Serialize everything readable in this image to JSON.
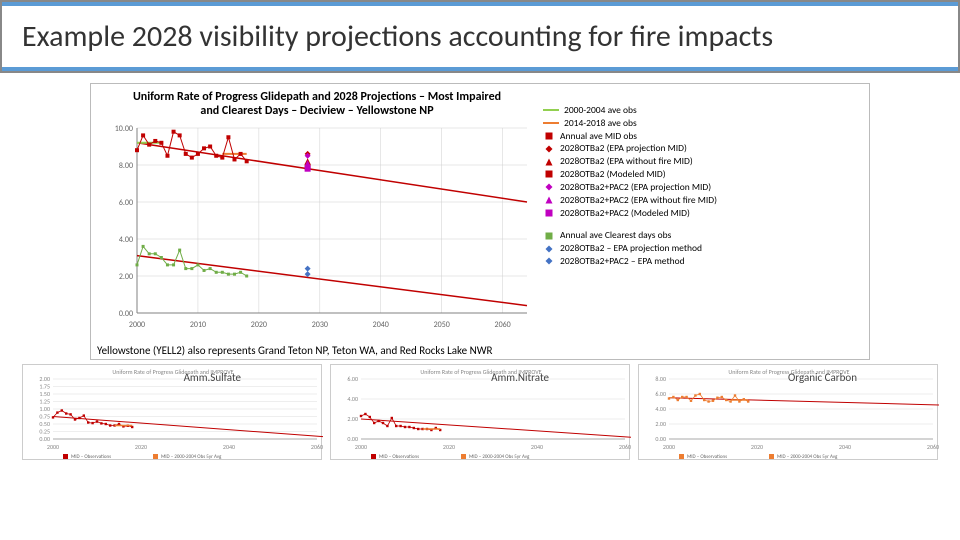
{
  "page_title": "Example 2028 visibility projections accounting for fire impacts",
  "main_chart": {
    "title": "Uniform Rate of Progress Glidepath and 2028 Projections – Most Impaired and Clearest Days – Deciview – Yellowstone NP",
    "x": {
      "min": 2000,
      "max": 2064,
      "tick_step": 10,
      "label": ""
    },
    "y": {
      "min": 0.0,
      "max": 10.0,
      "tick_step": 2.0,
      "label": ""
    },
    "background_color": "#ffffff",
    "grid_color": "#cfcfcf",
    "axis_line_color": "#808080",
    "series": {
      "glide_line_upper": {
        "color": "#c00000",
        "width": 1.5,
        "points": [
          [
            2000,
            9.2
          ],
          [
            2064,
            6.0
          ]
        ]
      },
      "glide_line_lower": {
        "color": "#c00000",
        "width": 1.5,
        "points": [
          [
            2000,
            3.1
          ],
          [
            2064,
            0.4
          ]
        ]
      },
      "ave0004": {
        "color": "#92d050",
        "width": 2,
        "points": [
          [
            2000,
            9.2
          ],
          [
            2004,
            9.2
          ]
        ]
      },
      "ave1418": {
        "color": "#ed7d31",
        "width": 2,
        "points": [
          [
            2014,
            8.6
          ],
          [
            2018,
            8.6
          ]
        ]
      },
      "mid_obs": {
        "color": "#c00000",
        "marker": "square",
        "size": 4,
        "points": [
          [
            2000,
            8.8
          ],
          [
            2001,
            9.6
          ],
          [
            2002,
            9.1
          ],
          [
            2003,
            9.3
          ],
          [
            2004,
            9.2
          ],
          [
            2005,
            8.5
          ],
          [
            2006,
            9.8
          ],
          [
            2007,
            9.6
          ],
          [
            2008,
            8.6
          ],
          [
            2009,
            8.4
          ],
          [
            2010,
            8.6
          ],
          [
            2011,
            8.9
          ],
          [
            2012,
            9.0
          ],
          [
            2013,
            8.5
          ],
          [
            2014,
            8.4
          ],
          [
            2015,
            9.5
          ],
          [
            2016,
            8.3
          ],
          [
            2017,
            8.6
          ],
          [
            2018,
            8.2
          ]
        ]
      },
      "clear_obs": {
        "color": "#70ad47",
        "marker": "square",
        "size": 3,
        "points": [
          [
            2000,
            2.6
          ],
          [
            2001,
            3.6
          ],
          [
            2002,
            3.2
          ],
          [
            2003,
            3.2
          ],
          [
            2004,
            3.0
          ],
          [
            2005,
            2.6
          ],
          [
            2006,
            2.6
          ],
          [
            2007,
            3.4
          ],
          [
            2008,
            2.4
          ],
          [
            2009,
            2.4
          ],
          [
            2010,
            2.6
          ],
          [
            2011,
            2.3
          ],
          [
            2012,
            2.4
          ],
          [
            2013,
            2.2
          ],
          [
            2014,
            2.2
          ],
          [
            2015,
            2.1
          ],
          [
            2016,
            2.1
          ],
          [
            2017,
            2.2
          ],
          [
            2018,
            2.0
          ]
        ]
      },
      "proj_points_mid": [
        {
          "x": 2028,
          "y": 8.6,
          "color": "#c00000",
          "shape": "diamond"
        },
        {
          "x": 2028,
          "y": 8.2,
          "color": "#c00000",
          "shape": "triangle"
        },
        {
          "x": 2028,
          "y": 7.9,
          "color": "#c00000",
          "shape": "square"
        },
        {
          "x": 2028,
          "y": 8.5,
          "color": "#c000c0",
          "shape": "diamond"
        },
        {
          "x": 2028,
          "y": 8.1,
          "color": "#c000c0",
          "shape": "triangle"
        },
        {
          "x": 2028,
          "y": 7.8,
          "color": "#c000c0",
          "shape": "square"
        }
      ],
      "proj_points_clear": [
        {
          "x": 2028,
          "y": 2.4,
          "color": "#4472c4",
          "shape": "diamond"
        },
        {
          "x": 2028,
          "y": 2.1,
          "color": "#4472c4",
          "shape": "diamond"
        }
      ]
    }
  },
  "legend": {
    "items": [
      {
        "type": "line",
        "color": "#92d050",
        "label": "2000-2004 ave obs"
      },
      {
        "type": "line",
        "color": "#ed7d31",
        "label": "2014-2018 ave obs"
      },
      {
        "type": "marker",
        "shape": "square",
        "color": "#c00000",
        "label": "Annual ave MID obs"
      },
      {
        "type": "marker",
        "shape": "diamond",
        "color": "#c00000",
        "label": "2028OTBa2 (EPA projection MID)"
      },
      {
        "type": "marker",
        "shape": "triangle",
        "color": "#c00000",
        "label": "2028OTBa2 (EPA without fire MID)"
      },
      {
        "type": "marker",
        "shape": "square",
        "color": "#c00000",
        "label": "2028OTBa2 (Modeled MID)"
      },
      {
        "type": "marker",
        "shape": "diamond",
        "color": "#c000c0",
        "label": "2028OTBa2+PAC2 (EPA projection MID)"
      },
      {
        "type": "marker",
        "shape": "triangle",
        "color": "#c000c0",
        "label": "2028OTBa2+PAC2 (EPA without fire MID)"
      },
      {
        "type": "marker",
        "shape": "square",
        "color": "#c000c0",
        "label": "2028OTBa2+PAC2 (Modeled MID)"
      }
    ],
    "items2": [
      {
        "type": "marker",
        "shape": "square",
        "color": "#70ad47",
        "label": "Annual ave Clearest days obs"
      },
      {
        "type": "marker",
        "shape": "diamond",
        "color": "#4472c4",
        "label": "2028OTBa2 – EPA projection method"
      },
      {
        "type": "marker",
        "shape": "diamond",
        "color": "#4472c4",
        "label": "2028OTBa2+PAC2 – EPA method"
      }
    ]
  },
  "footnote": "Yellowstone (YELL2) also represents Grand Teton NP, Teton WA, and Red Rocks Lake NWR",
  "subcharts": [
    {
      "label": "Amm.Sulfate",
      "title": "Uniform Rate of Progress Glidepath and IMPROVE",
      "y": {
        "min": 0.0,
        "max": 2.0,
        "step": 0.25
      },
      "x": {
        "min": 2000,
        "max": 2060,
        "step": 20
      },
      "glide": {
        "color": "#c00000",
        "points": [
          [
            2000,
            0.75
          ],
          [
            2064,
            0.05
          ]
        ]
      },
      "obs": {
        "color": "#c00000",
        "marker_color": "#c00000",
        "points": [
          [
            2000,
            0.72
          ],
          [
            2001,
            0.88
          ],
          [
            2002,
            0.95
          ],
          [
            2003,
            0.85
          ],
          [
            2004,
            0.82
          ],
          [
            2005,
            0.65
          ],
          [
            2006,
            0.7
          ],
          [
            2007,
            0.78
          ],
          [
            2008,
            0.55
          ],
          [
            2009,
            0.53
          ],
          [
            2010,
            0.58
          ],
          [
            2011,
            0.52
          ],
          [
            2012,
            0.5
          ],
          [
            2013,
            0.45
          ],
          [
            2014,
            0.45
          ],
          [
            2015,
            0.5
          ],
          [
            2016,
            0.42
          ],
          [
            2017,
            0.44
          ],
          [
            2018,
            0.4
          ]
        ]
      },
      "ave": {
        "color": "#ed7d31",
        "points": [
          [
            2014,
            0.45
          ],
          [
            2018,
            0.45
          ]
        ]
      }
    },
    {
      "label": "Amm.Nitrate",
      "title": "Uniform Rate of Progress Glidepath and IMPROVE",
      "y": {
        "min": 0.0,
        "max": 6.0,
        "step": 2.0
      },
      "x": {
        "min": 2000,
        "max": 2060,
        "step": 20
      },
      "glide": {
        "color": "#c00000",
        "points": [
          [
            2000,
            2.0
          ],
          [
            2064,
            0.1
          ]
        ]
      },
      "obs": {
        "color": "#c00000",
        "points": [
          [
            2000,
            2.3
          ],
          [
            2001,
            2.5
          ],
          [
            2002,
            2.2
          ],
          [
            2003,
            1.6
          ],
          [
            2004,
            1.8
          ],
          [
            2005,
            1.6
          ],
          [
            2006,
            1.3
          ],
          [
            2007,
            2.1
          ],
          [
            2008,
            1.3
          ],
          [
            2009,
            1.3
          ],
          [
            2010,
            1.2
          ],
          [
            2011,
            1.2
          ],
          [
            2012,
            1.1
          ],
          [
            2013,
            1.0
          ],
          [
            2014,
            1.0
          ],
          [
            2015,
            1.0
          ],
          [
            2016,
            0.9
          ],
          [
            2017,
            1.1
          ],
          [
            2018,
            0.9
          ]
        ]
      },
      "ave": {
        "color": "#ed7d31",
        "points": [
          [
            2014,
            1.0
          ],
          [
            2018,
            1.0
          ]
        ]
      }
    },
    {
      "label": "Organic Carbon",
      "title": "Uniform Rate of Progress Glidepath and IMPROVE",
      "y": {
        "min": 0.0,
        "max": 8.0,
        "step": 2.0
      },
      "x": {
        "min": 2000,
        "max": 2060,
        "step": 20
      },
      "glide": {
        "color": "#c00000",
        "points": [
          [
            2000,
            5.5
          ],
          [
            2064,
            4.5
          ]
        ]
      },
      "obs": {
        "color": "#ed7d31",
        "points": [
          [
            2000,
            5.4
          ],
          [
            2001,
            5.6
          ],
          [
            2002,
            5.2
          ],
          [
            2003,
            5.6
          ],
          [
            2004,
            5.6
          ],
          [
            2005,
            5.1
          ],
          [
            2006,
            5.8
          ],
          [
            2007,
            6.0
          ],
          [
            2008,
            5.2
          ],
          [
            2009,
            5.0
          ],
          [
            2010,
            5.1
          ],
          [
            2011,
            5.5
          ],
          [
            2012,
            5.6
          ],
          [
            2013,
            5.2
          ],
          [
            2014,
            5.0
          ],
          [
            2015,
            5.8
          ],
          [
            2016,
            5.0
          ],
          [
            2017,
            5.3
          ],
          [
            2018,
            5.0
          ]
        ]
      },
      "ave": {
        "color": "#ed7d31",
        "points": [
          [
            2014,
            5.2
          ],
          [
            2018,
            5.2
          ]
        ]
      }
    }
  ]
}
